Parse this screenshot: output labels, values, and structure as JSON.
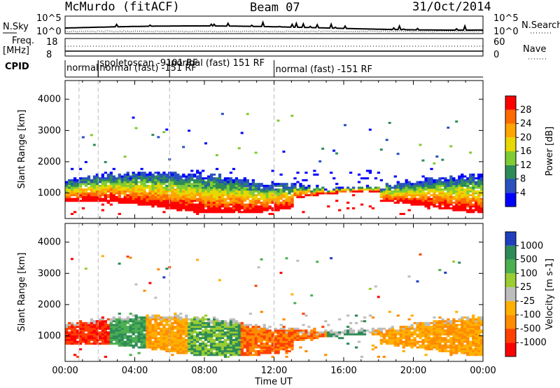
{
  "header": {
    "station": "McMurdo (fitACF)",
    "beam": "Beam 07",
    "date": "31/Oct/2014"
  },
  "panels": {
    "nsky_label": "N.Sky",
    "nsky_ticks": [
      "10^5",
      "10^0"
    ],
    "nsearch_label": "N.Search",
    "freq_label_1": "Freq.",
    "freq_label_2": "[MHz]",
    "freq_ticks": [
      "18",
      "8"
    ],
    "nave_ticks": [
      "60",
      "0"
    ],
    "nave_label": "Nave",
    "cpid_label": "CPID"
  },
  "modes": [
    {
      "text": "normal",
      "start_hour": 0.0
    },
    {
      "text": "spoletoscan -9101 RF",
      "start_hour": 1.9
    },
    {
      "text": "normal (fast) -151 RF",
      "start_hour": 1.9
    },
    {
      "text": "normal (fast) 151 RF",
      "start_hour": 6.0
    },
    {
      "text": "normal (fast) -151 RF",
      "start_hour": 12.0
    }
  ],
  "chart_data": [
    {
      "type": "heatmap",
      "name": "Power",
      "ylabel": "Slant Range [km]",
      "yticks": [
        1000,
        2000,
        3000,
        4000
      ],
      "ylim": [
        180,
        4600
      ],
      "xlim_hours": [
        0,
        24
      ],
      "colorbar_label": "Power [dB]",
      "colorbar_ticks": [
        "4",
        "8",
        "12",
        "16",
        "20",
        "24",
        "28"
      ],
      "colorbar_colors": [
        "#0000ff",
        "#2a52be",
        "#2e8b57",
        "#7fcc33",
        "#e6d800",
        "#ffa500",
        "#ff6a00",
        "#ff0000"
      ],
      "scatter_band_km": [
        [
          500,
          1400
        ]
      ],
      "mode_dividers_hours": [
        0.8,
        1.9,
        6.0,
        12.0
      ]
    },
    {
      "type": "heatmap",
      "name": "Velocity",
      "ylabel": "Slant Range [km]",
      "yticks": [
        1000,
        2000,
        3000,
        4000
      ],
      "ylim": [
        180,
        4600
      ],
      "xlim_hours": [
        0,
        24
      ],
      "colorbar_label": "Velocity [m s-1]",
      "colorbar_ticks": [
        "1000",
        "500",
        "100",
        "25",
        "-25",
        "-100",
        "-500",
        "-1000"
      ],
      "colorbar_colors": [
        "#1f3fbf",
        "#2e8b57",
        "#4caf50",
        "#9acd32",
        "#bdbdbd",
        "#ffb000",
        "#ff8c00",
        "#ff4000",
        "#ff0000"
      ],
      "mode_dividers_hours": [
        0.8,
        1.9,
        6.0,
        12.0
      ]
    }
  ],
  "xaxis": {
    "ticks": [
      "00:00",
      "04:00",
      "08:00",
      "12:00",
      "16:00",
      "20:00",
      "00:00"
    ],
    "label": "Time UT"
  }
}
